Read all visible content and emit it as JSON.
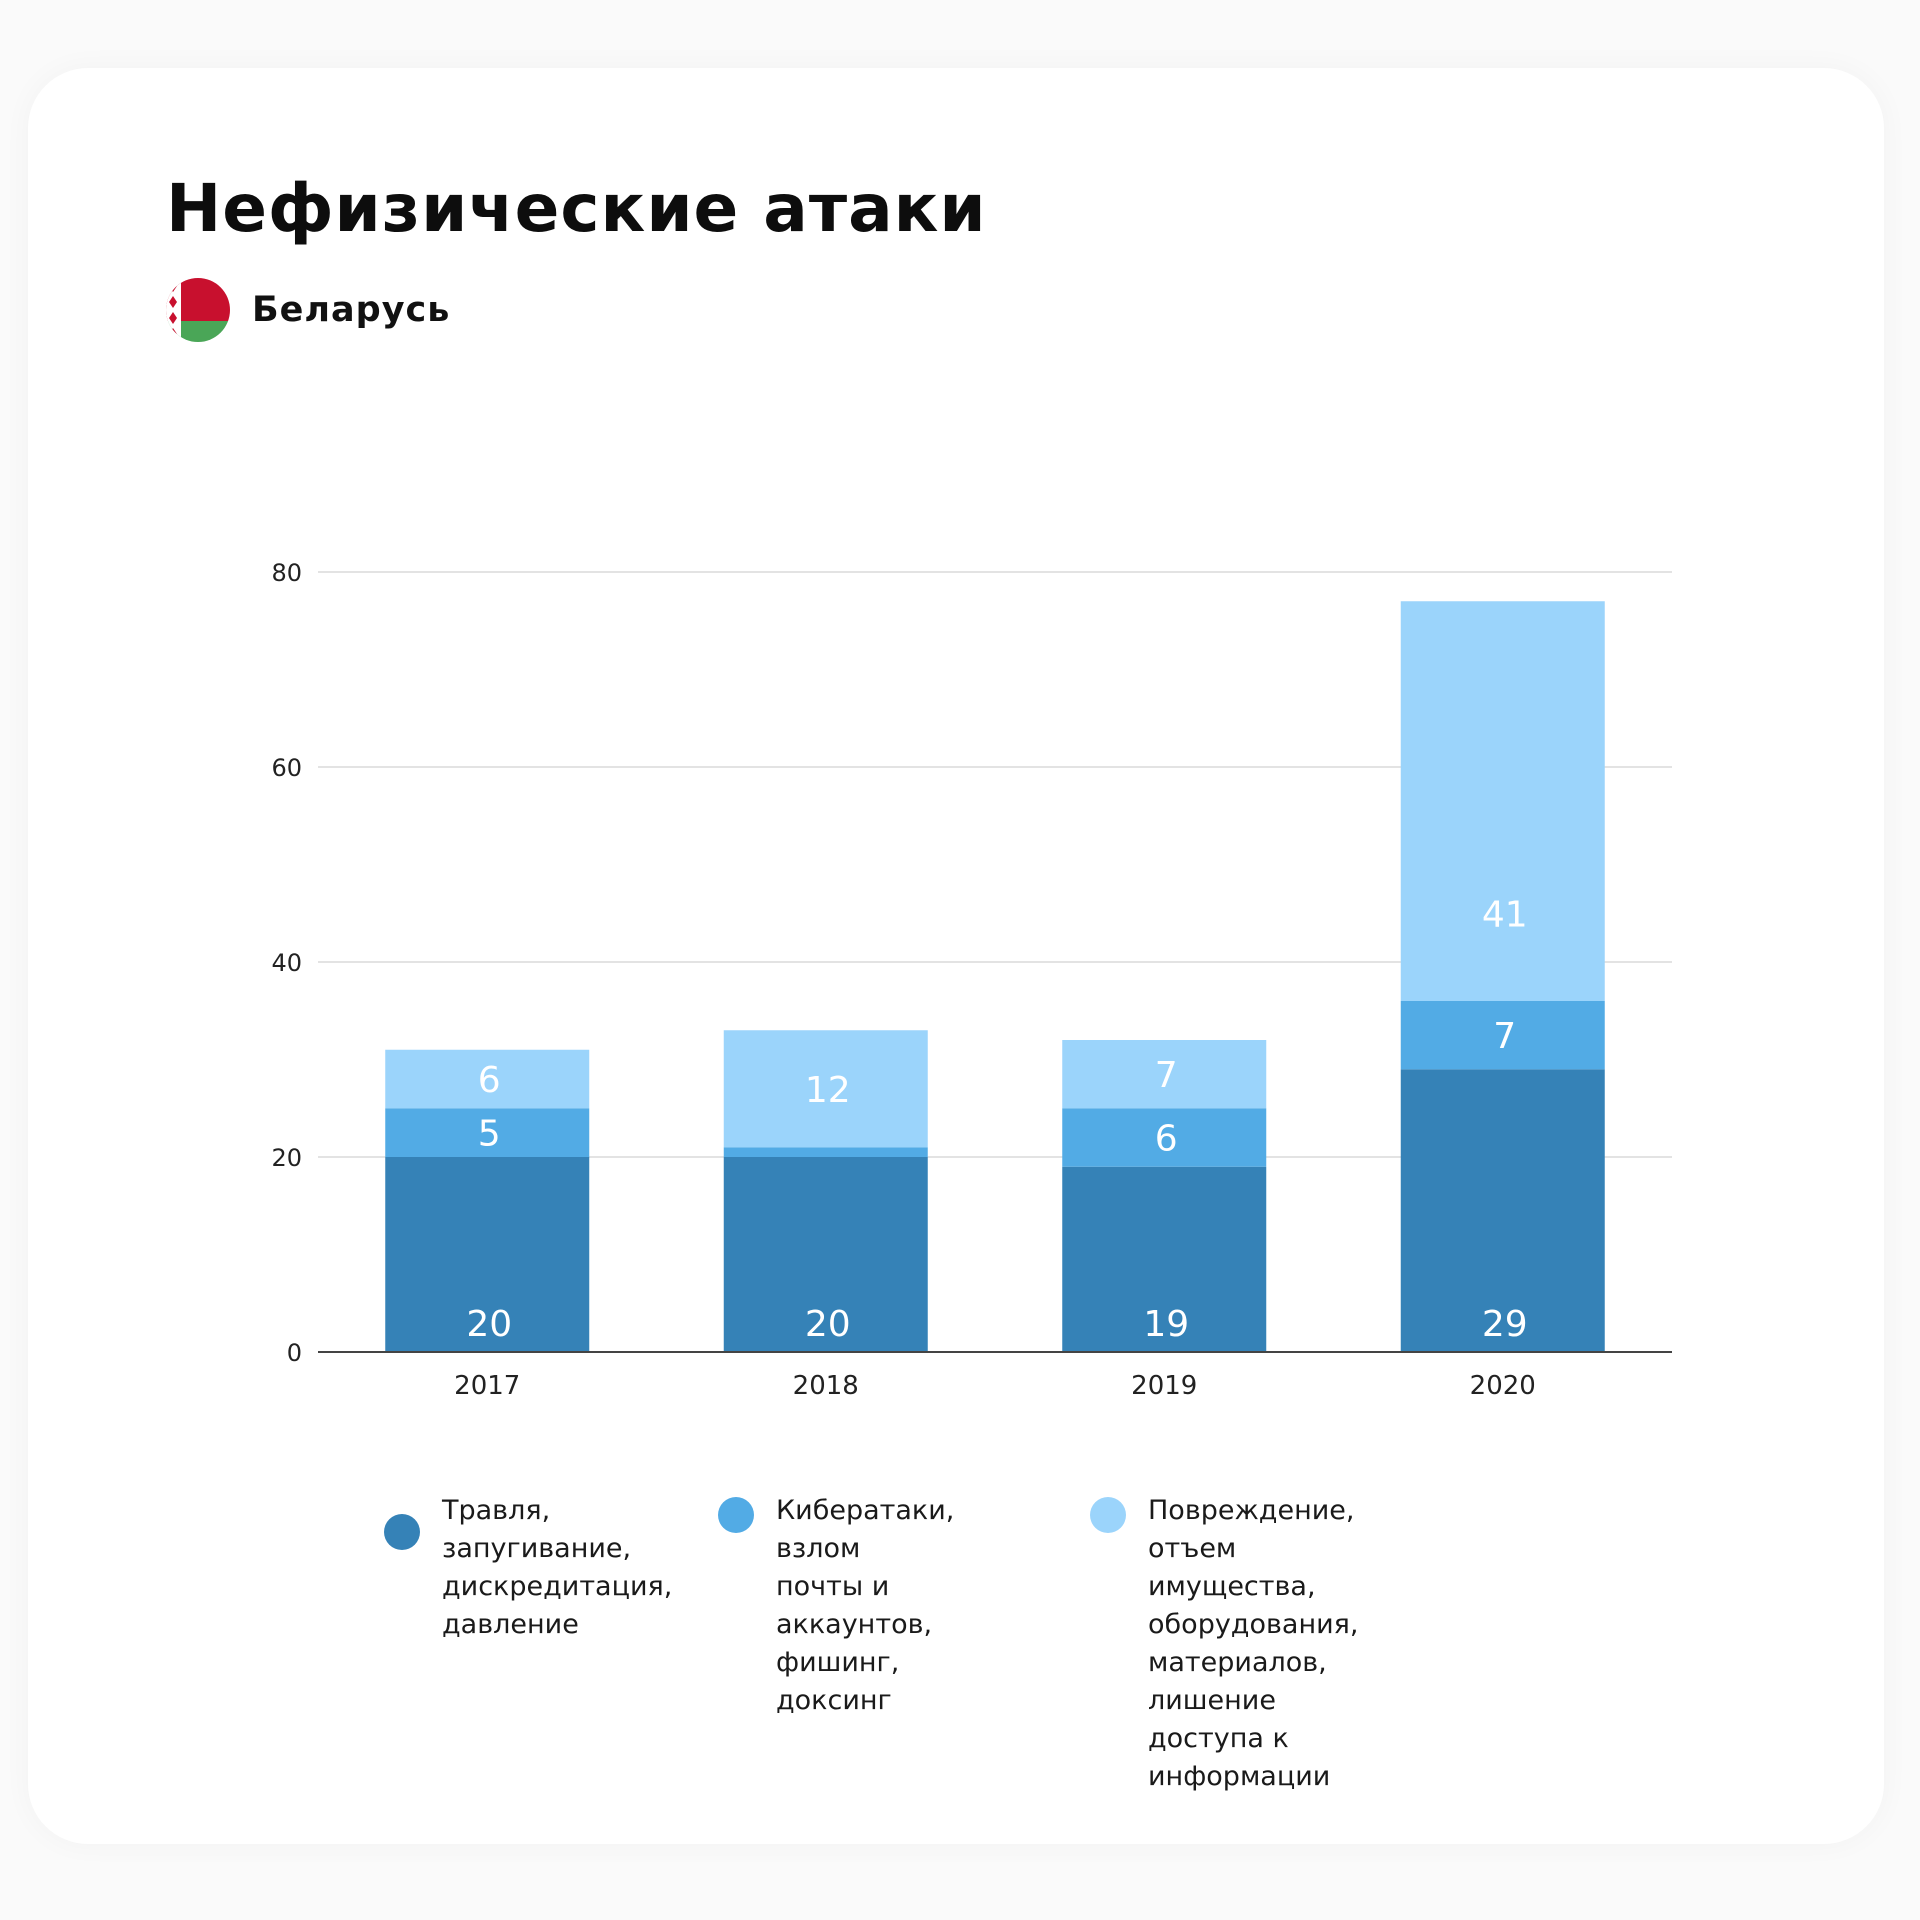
{
  "header": {
    "title": "Нефизические атаки",
    "country": "Беларусь"
  },
  "colors": {
    "series_dark": "#3582b7",
    "series_mid": "#52abe5",
    "series_light": "#9bd4fb",
    "gridline": "#e3e3e3",
    "axis": "#444444"
  },
  "chart_data": {
    "type": "bar",
    "stacked": true,
    "categories": [
      "2017",
      "2018",
      "2019",
      "2020"
    ],
    "series": [
      {
        "name": "Травля, запугивание, дискредитация, давление",
        "values": [
          20,
          20,
          19,
          29
        ]
      },
      {
        "name": "Кибератаки, взлом почты и аккаунтов, фишинг, доксинг",
        "values": [
          5,
          1,
          6,
          7
        ]
      },
      {
        "name": "Повреждение, отъем имущества, оборудования, материалов, лишение доступа к информации",
        "values": [
          6,
          12,
          7,
          41
        ]
      }
    ],
    "data_labels": [
      [
        "20",
        "20",
        "19",
        "29"
      ],
      [
        "5",
        "",
        "6",
        "7"
      ],
      [
        "6",
        "12",
        "7",
        "41"
      ]
    ],
    "ylim": [
      0,
      80
    ],
    "yticks": [
      0,
      20,
      40,
      60,
      80
    ],
    "grid": true,
    "legend_position": "bottom"
  },
  "legend": [
    {
      "text": "Травля,\nзапугивание,\nдискредитация,\nдавление"
    },
    {
      "text": "Кибератаки,\nвзлом почты и\nаккаунтов,\nфишинг, доксинг"
    },
    {
      "text": "Повреждение, отъем\nимущества, оборудования,\nматериалов, лишение\nдоступа к информации"
    }
  ]
}
